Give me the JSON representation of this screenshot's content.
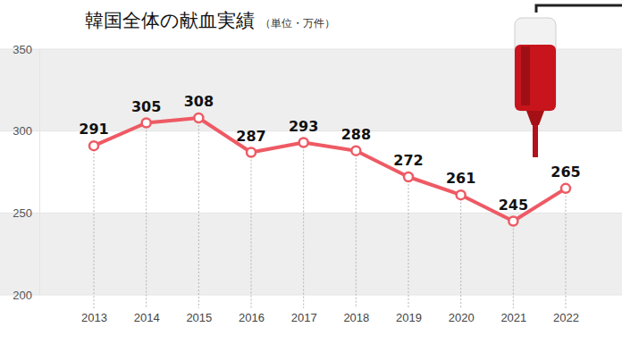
{
  "chart_data": {
    "type": "line",
    "title": "韓国全体の献血実績",
    "subtitle": "（単位・万件）",
    "categories": [
      "2013",
      "2014",
      "2015",
      "2016",
      "2017",
      "2018",
      "2019",
      "2020",
      "2021",
      "2022"
    ],
    "values": [
      291,
      305,
      308,
      287,
      293,
      288,
      272,
      261,
      245,
      265
    ],
    "color": "#ee5a64",
    "marker": "circle",
    "ylim": [
      200,
      350
    ],
    "yticks": [
      200,
      250,
      300,
      350
    ],
    "grid": true,
    "data_labels": true
  }
}
